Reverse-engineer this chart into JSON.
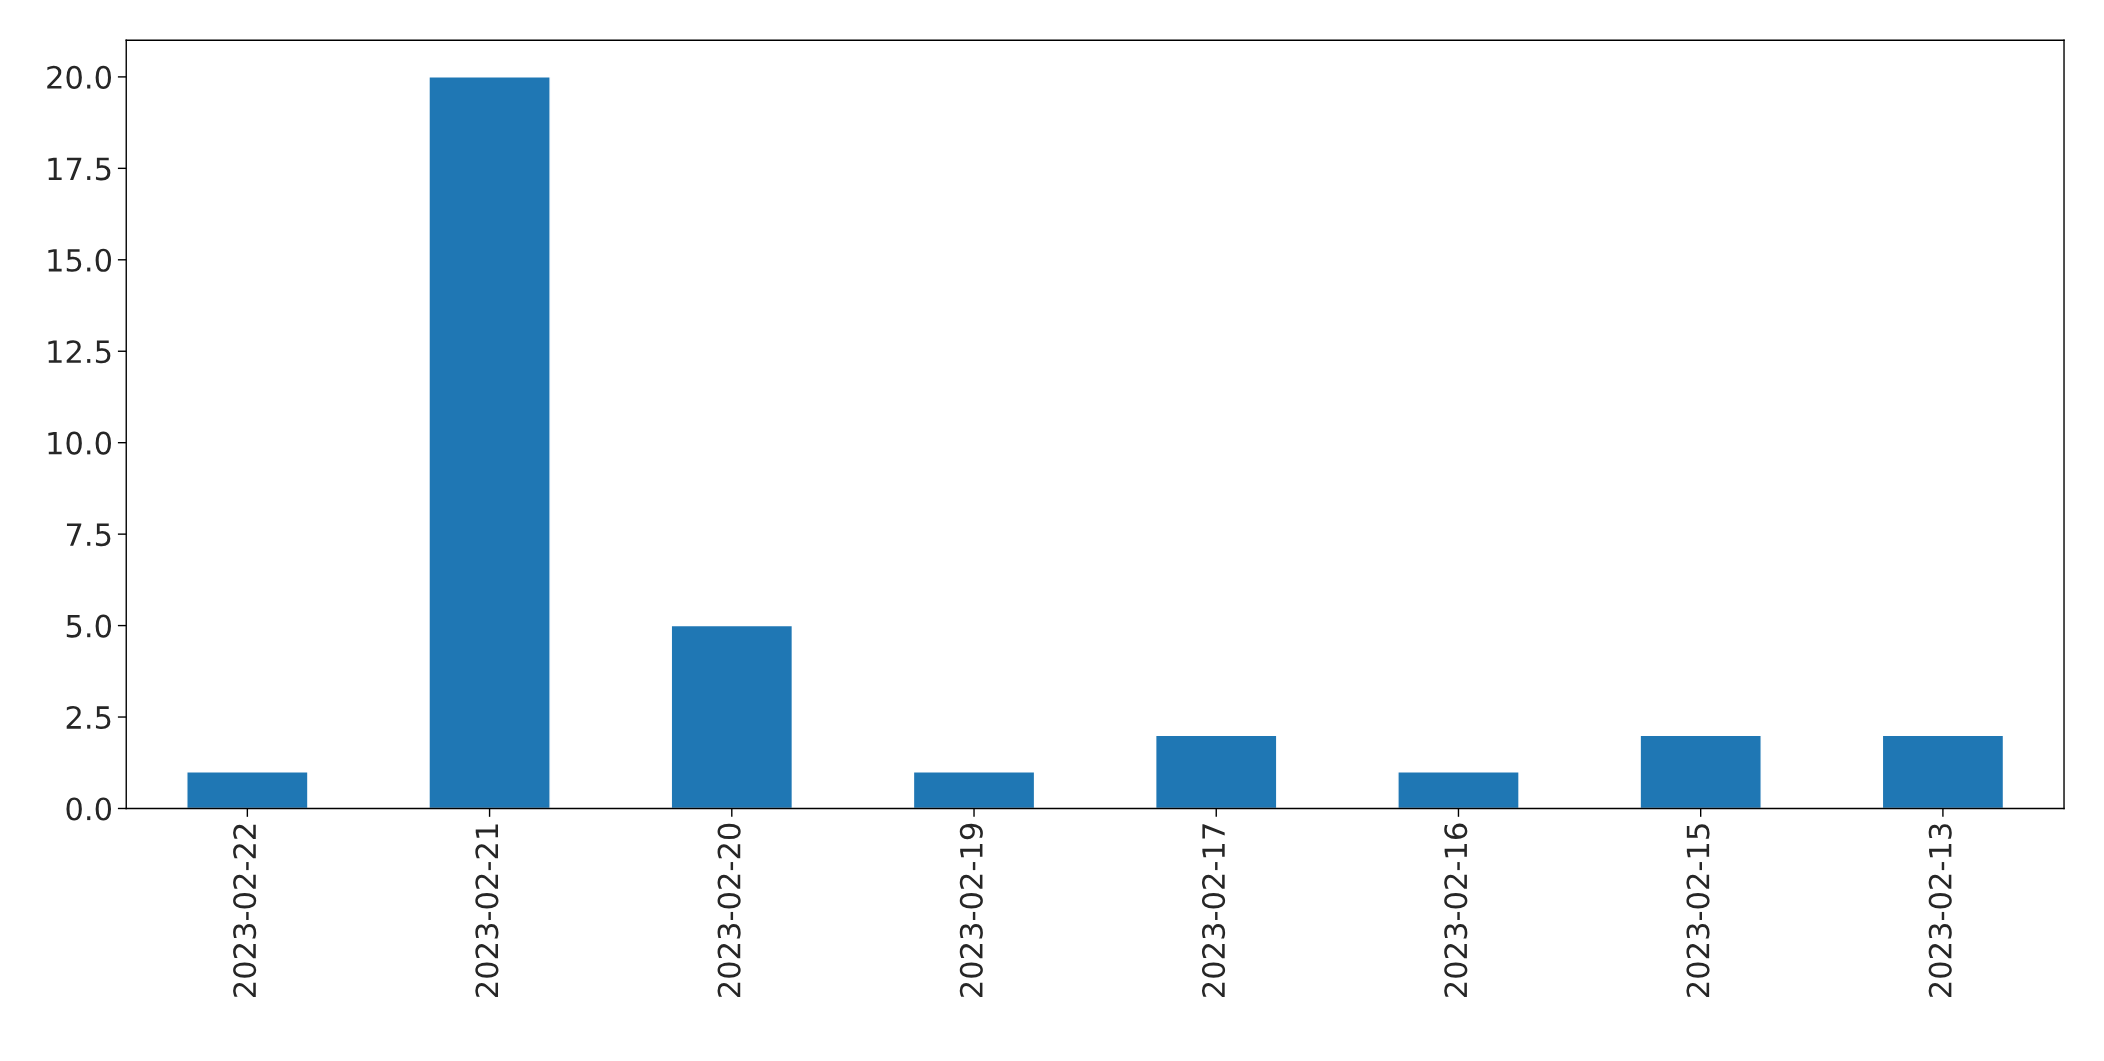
{
  "chart_data": {
    "type": "bar",
    "categories": [
      "2023-02-22",
      "2023-02-21",
      "2023-02-20",
      "2023-02-19",
      "2023-02-17",
      "2023-02-16",
      "2023-02-15",
      "2023-02-13"
    ],
    "values": [
      1,
      20,
      5,
      1,
      2,
      1,
      2,
      2
    ],
    "color": "#1f77b4",
    "ylim": [
      0,
      21
    ],
    "yticks": [
      {
        "value": 0,
        "label": "0.0"
      },
      {
        "value": 2.5,
        "label": "2.5"
      },
      {
        "value": 5,
        "label": "5.0"
      },
      {
        "value": 7.5,
        "label": "7.5"
      },
      {
        "value": 10,
        "label": "10.0"
      },
      {
        "value": 12.5,
        "label": "12.5"
      },
      {
        "value": 15,
        "label": "15.0"
      },
      {
        "value": 17.5,
        "label": "17.5"
      },
      {
        "value": 20,
        "label": "20.0"
      }
    ],
    "grid": false
  }
}
